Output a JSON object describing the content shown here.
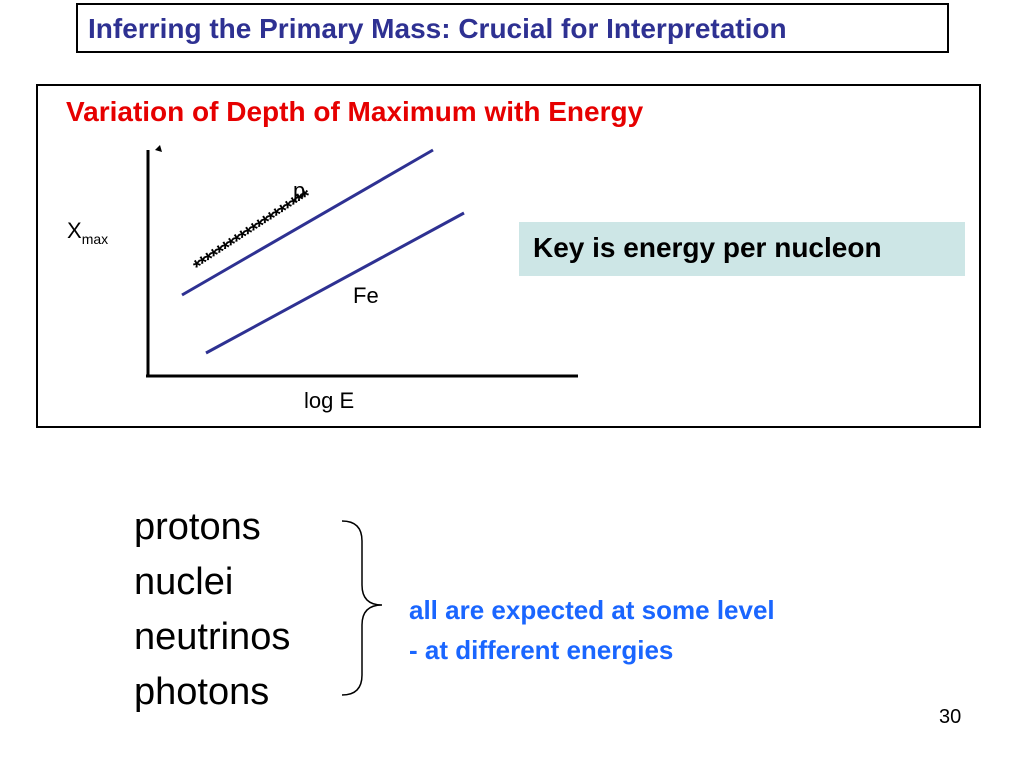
{
  "slide": {
    "title": "Inferring the Primary Mass: Crucial for Interpretation",
    "page_number": "30"
  },
  "diagram": {
    "title": "Variation of Depth of Maximum with Energy",
    "y_label_main": "X",
    "y_label_sub": "max",
    "x_label": "log E",
    "series_labels": {
      "p": "p",
      "fe": "Fe"
    },
    "stars": "********************",
    "key_note": "Key is energy per nucleon",
    "line_color": "#2e3192"
  },
  "particles": [
    "protons",
    "nuclei",
    "neutrinos",
    "photons"
  ],
  "conclusion": {
    "line1": "all are expected at some level",
    "line2": "- at different energies"
  }
}
